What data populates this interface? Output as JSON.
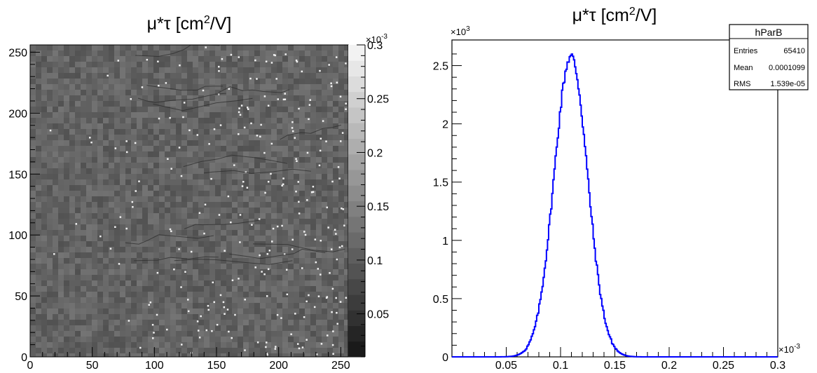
{
  "chart_data": [
    {
      "type": "heatmap",
      "title_main": "μ*τ [cm",
      "title_sup": "2",
      "title_end": "/V]",
      "x_range": [
        0,
        256
      ],
      "y_range": [
        0,
        256
      ],
      "x_ticks": [
        "0",
        "50",
        "100",
        "150",
        "200",
        "250"
      ],
      "y_ticks": [
        "0",
        "50",
        "100",
        "150",
        "200",
        "250"
      ],
      "z_range": [
        0.01,
        0.3
      ],
      "z_exponent_label": "×10",
      "z_exponent_power": "-3",
      "z_ticks": [
        "0.05",
        "0.1",
        "0.15",
        "0.2",
        "0.25",
        "0.3"
      ],
      "z_tick_values": [
        0.05,
        0.1,
        0.15,
        0.2,
        0.25,
        0.3
      ],
      "colormap": "grayscale",
      "typical_value": 0.11
    },
    {
      "type": "histogram",
      "title_main": "μ*τ [cm",
      "title_sup": "2",
      "title_end": "/V]",
      "y_exponent_label": "×10",
      "y_exponent_power": "3",
      "x_exponent_label": "×10",
      "x_exponent_power": "-3",
      "x_range": [
        0.0,
        0.3
      ],
      "y_range": [
        0,
        2.72
      ],
      "x_ticks": [
        "0.05",
        "0.1",
        "0.15",
        "0.2",
        "0.25",
        "0.3"
      ],
      "x_tick_values": [
        0.05,
        0.1,
        0.15,
        0.2,
        0.25,
        0.3
      ],
      "y_ticks": [
        "0",
        "0.5",
        "1",
        "1.5",
        "2",
        "2.5"
      ],
      "y_tick_values": [
        0,
        0.5,
        1,
        1.5,
        2,
        2.5
      ],
      "line_color": "#0000ff",
      "peak_x": 0.1095,
      "peak_y": 2.58,
      "sigma": 0.0154,
      "x_start": 0.0,
      "x_end": 0.3,
      "stats_box": {
        "title": "hParB",
        "rows": [
          {
            "label": "Entries",
            "value": "65410"
          },
          {
            "label": "Mean",
            "value": "0.0001099"
          },
          {
            "label": "RMS",
            "value": "1.539e-05"
          }
        ]
      }
    }
  ]
}
